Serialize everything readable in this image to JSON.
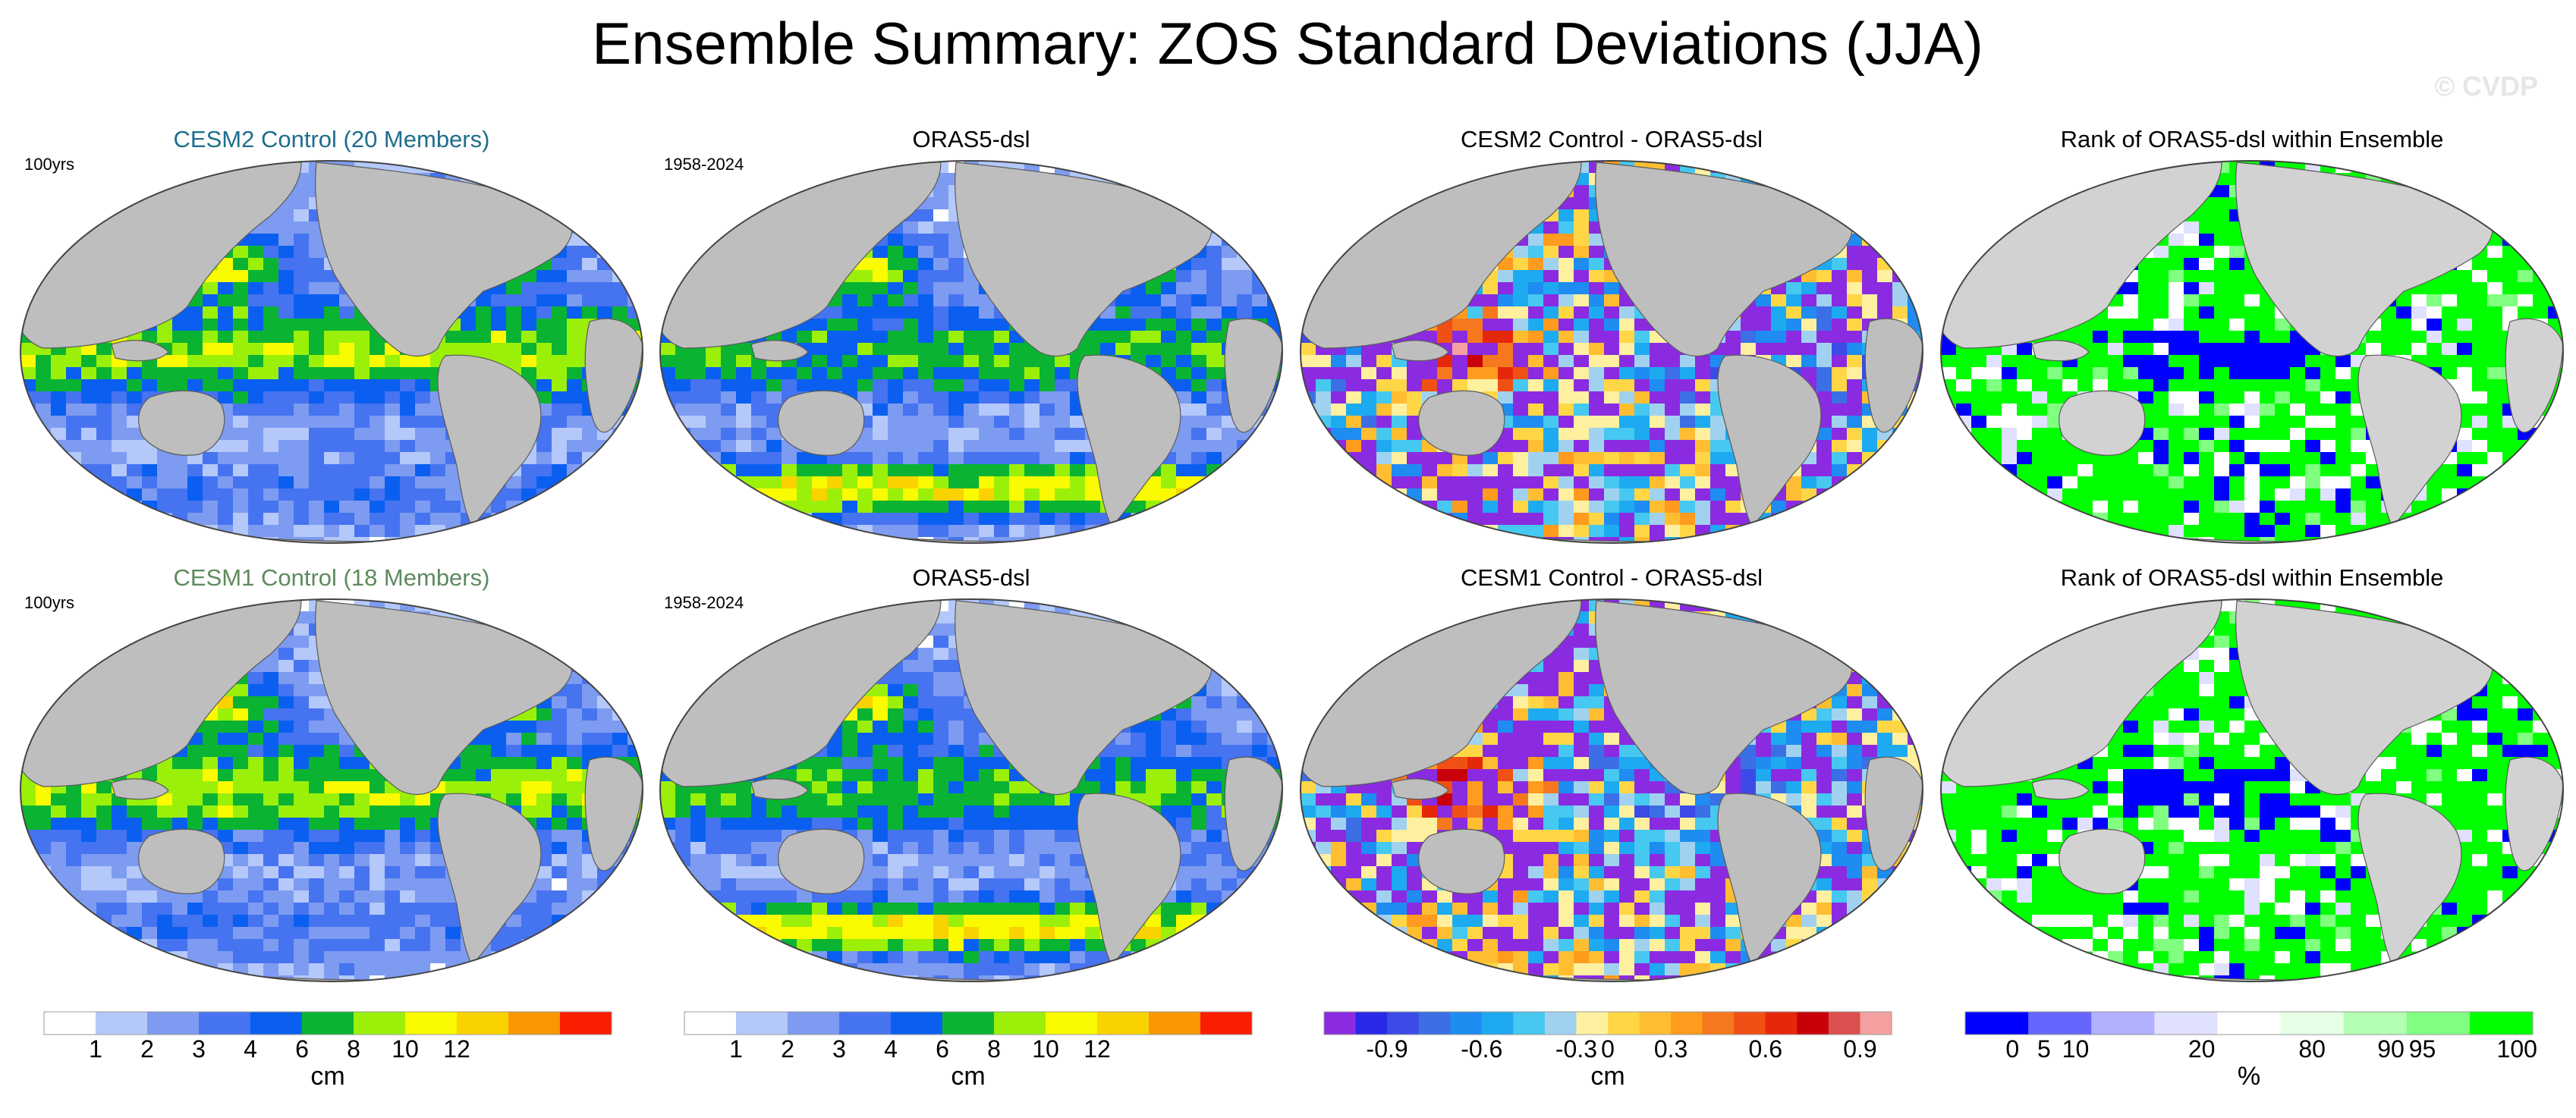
{
  "title": "Ensemble Summary: ZOS Standard Deviations (JJA)",
  "watermark": "© CVDP",
  "rows": [
    {
      "panels": [
        {
          "title": "CESM2 Control (20 Members)",
          "title_color": "#1f6e8c",
          "corner_label": "100yrs",
          "kind": "model"
        },
        {
          "title": "ORAS5-dsl",
          "title_color": "#000000",
          "corner_label": "1958-2024",
          "kind": "obs"
        },
        {
          "title": "CESM2 Control - ORAS5-dsl",
          "title_color": "#000000",
          "corner_label": "",
          "kind": "diff"
        },
        {
          "title": "Rank of ORAS5-dsl within Ensemble",
          "title_color": "#000000",
          "corner_label": "",
          "kind": "rank"
        }
      ]
    },
    {
      "panels": [
        {
          "title": "CESM1 Control (18 Members)",
          "title_color": "#5e8a5e",
          "corner_label": "100yrs",
          "kind": "model"
        },
        {
          "title": "ORAS5-dsl",
          "title_color": "#000000",
          "corner_label": "1958-2024",
          "kind": "obs"
        },
        {
          "title": "CESM1 Control - ORAS5-dsl",
          "title_color": "#000000",
          "corner_label": "",
          "kind": "diff"
        },
        {
          "title": "Rank of ORAS5-dsl within Ensemble",
          "title_color": "#000000",
          "corner_label": "",
          "kind": "rank"
        }
      ]
    }
  ],
  "colorbars": [
    {
      "name": "std-1",
      "unit": "cm",
      "colors": [
        "#ffffff",
        "#b4c8fa",
        "#7d9bf0",
        "#4673f0",
        "#0a5ff0",
        "#0ab432",
        "#9bf00a",
        "#fafa00",
        "#fad200",
        "#fa9600",
        "#fa1e00"
      ],
      "tick_labels": [
        "1",
        "2",
        "3",
        "4",
        "6",
        "8",
        "10",
        "12"
      ],
      "tick_boundaries": [
        1,
        2,
        3,
        4,
        5,
        6,
        7,
        8
      ]
    },
    {
      "name": "std-2",
      "unit": "cm",
      "colors": [
        "#ffffff",
        "#b4c8fa",
        "#7d9bf0",
        "#4673f0",
        "#0a5ff0",
        "#0ab432",
        "#9bf00a",
        "#fafa00",
        "#fad200",
        "#fa9600",
        "#fa1e00"
      ],
      "tick_labels": [
        "1",
        "2",
        "3",
        "4",
        "6",
        "8",
        "10",
        "12"
      ],
      "tick_boundaries": [
        1,
        2,
        3,
        4,
        5,
        6,
        7,
        8
      ]
    },
    {
      "name": "diff",
      "unit": "cm",
      "colors": [
        "#8a2be2",
        "#2828e6",
        "#3c4be6",
        "#3c6ee6",
        "#1e8cf0",
        "#1eaaf0",
        "#46c8f0",
        "#a0d2f0",
        "#fff0a0",
        "#ffd746",
        "#ffbe32",
        "#ff9b1e",
        "#f5781e",
        "#f05014",
        "#e6280a",
        "#c8000a",
        "#dc5050",
        "#f5a0a0"
      ],
      "tick_labels": [
        "-0.9",
        "-0.6",
        "-0.3",
        "0",
        "0.3",
        "0.6",
        "0.9"
      ],
      "tick_boundaries": [
        2,
        5,
        8,
        9,
        11,
        14,
        17
      ]
    },
    {
      "name": "rank",
      "unit": "%",
      "colors": [
        "#0000ff",
        "#6666ff",
        "#b0b0ff",
        "#e0e0ff",
        "#ffffff",
        "#e6ffe6",
        "#b4ffb4",
        "#80ff80",
        "#00ff00"
      ],
      "tick_labels": [
        "0",
        "5",
        "10",
        "20",
        "80",
        "90",
        "95",
        "100"
      ],
      "tick_boundaries": [
        0.75,
        1.25,
        1.75,
        3.75,
        5.5,
        6.75,
        7.25,
        8.75
      ]
    }
  ]
}
